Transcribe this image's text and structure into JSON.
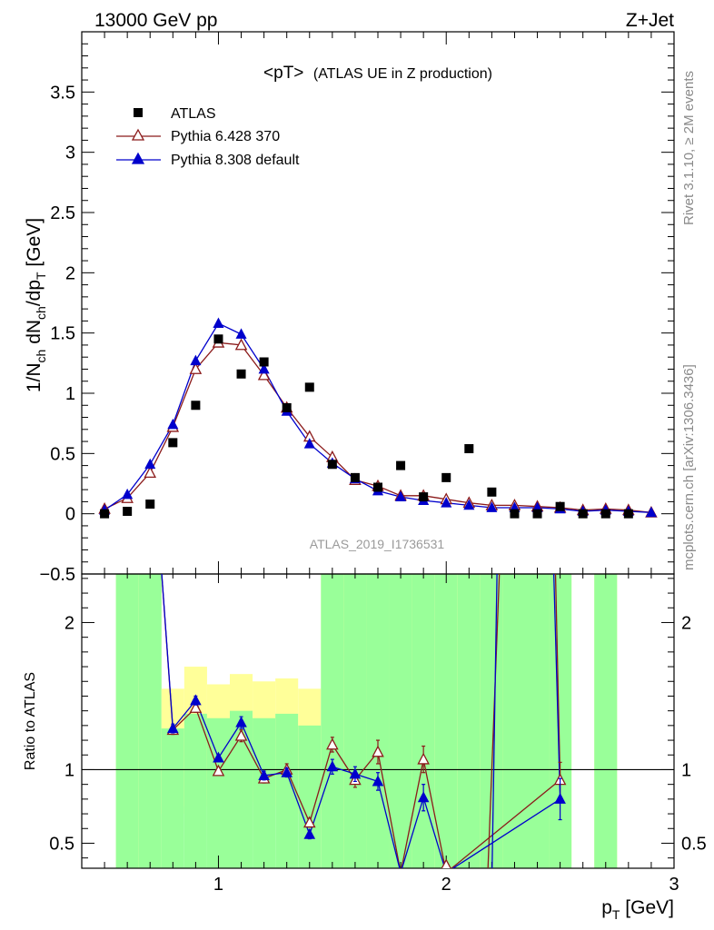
{
  "header": {
    "left": "13000 GeV pp",
    "right": "Z+Jet"
  },
  "side_labels": {
    "top": "Rivet 3.1.10, ≥ 2M events",
    "bottom": "mcplots.cern.ch [arXiv:1306.3436]"
  },
  "plot_title": {
    "main": "<pT>",
    "sub": "(ATLAS UE in Z production)"
  },
  "analysis_id": "ATLAS_2019_I1736531",
  "colors": {
    "data": "#000000",
    "pythia6": "#8b1a1a",
    "pythia8": "#0000cc",
    "band_inner": "#99ff99",
    "band_outer": "#ffff99"
  },
  "chart_data": {
    "type": "scatter",
    "title": "<pT> (ATLAS UE in Z production)",
    "xlabel": "p_T [GeV]",
    "xlim": [
      0.4,
      3.0
    ],
    "x_ticks": [
      1,
      2,
      3
    ],
    "main": {
      "ylabel": "1/N_ch dN_ch/dp_T [GeV]",
      "ylim": [
        -0.5,
        4.0
      ],
      "y_ticks": [
        -0.5,
        0,
        0.5,
        1,
        1.5,
        2,
        2.5,
        3,
        3.5
      ],
      "y_tick_labels": [
        "−0.5",
        "0",
        "0.5",
        "1",
        "1.5",
        "2",
        "2.5",
        "3",
        "3.5"
      ]
    },
    "ratio": {
      "ylabel": "Ratio to ATLAS",
      "ylim": [
        0.33,
        2.33
      ],
      "y_ticks": [
        0.5,
        1,
        2
      ],
      "y_tick_labels": [
        "0.5",
        "1",
        "2"
      ]
    },
    "series": [
      {
        "name": "ATLAS",
        "marker": "square",
        "x": [
          0.5,
          0.6,
          0.7,
          0.8,
          0.9,
          1.0,
          1.1,
          1.2,
          1.3,
          1.4,
          1.5,
          1.6,
          1.7,
          1.8,
          1.9,
          2.0,
          2.1,
          2.2,
          2.3,
          2.4,
          2.5,
          2.6,
          2.7,
          2.8
        ],
        "y": [
          0.0,
          0.02,
          0.08,
          0.59,
          0.9,
          1.45,
          1.16,
          1.26,
          0.88,
          1.05,
          0.41,
          0.3,
          0.22,
          0.4,
          0.14,
          0.3,
          0.54,
          0.18,
          0.0,
          0.0,
          0.06,
          0.0,
          0.0,
          0.0
        ]
      },
      {
        "name": "Pythia 6.428 370",
        "marker": "open-triangle",
        "x": [
          0.5,
          0.6,
          0.7,
          0.8,
          0.9,
          1.0,
          1.1,
          1.2,
          1.3,
          1.4,
          1.5,
          1.6,
          1.7,
          1.8,
          1.9,
          2.0,
          2.1,
          2.2,
          2.3,
          2.4,
          2.5,
          2.6,
          2.7,
          2.8,
          2.9
        ],
        "y": [
          0.04,
          0.13,
          0.34,
          0.72,
          1.2,
          1.42,
          1.4,
          1.15,
          0.88,
          0.64,
          0.47,
          0.28,
          0.23,
          0.15,
          0.15,
          0.12,
          0.09,
          0.07,
          0.07,
          0.06,
          0.05,
          0.03,
          0.04,
          0.03,
          0.01
        ],
        "ratio": [
          null,
          null,
          null,
          1.27,
          1.42,
          0.99,
          1.23,
          0.94,
          1.0,
          0.64,
          1.17,
          0.93,
          1.12,
          0.3,
          1.07,
          0.3,
          null,
          null,
          null,
          null,
          0.93,
          null,
          null,
          null,
          null
        ],
        "ratio_err": [
          0,
          0,
          0,
          0.03,
          0.03,
          0.02,
          0.04,
          0.03,
          0.04,
          0.03,
          0.05,
          0.05,
          0.08,
          0,
          0.09,
          0,
          0,
          0,
          0,
          0,
          0.12,
          0,
          0,
          0,
          0
        ]
      },
      {
        "name": "Pythia 8.308 default",
        "marker": "filled-triangle",
        "x": [
          0.5,
          0.6,
          0.7,
          0.8,
          0.9,
          1.0,
          1.1,
          1.2,
          1.3,
          1.4,
          1.5,
          1.6,
          1.7,
          1.8,
          1.9,
          2.0,
          2.1,
          2.2,
          2.3,
          2.4,
          2.5,
          2.6,
          2.7,
          2.8,
          2.9
        ],
        "y": [
          0.03,
          0.16,
          0.41,
          0.74,
          1.27,
          1.58,
          1.49,
          1.2,
          0.85,
          0.58,
          0.42,
          0.29,
          0.19,
          0.14,
          0.11,
          0.09,
          0.07,
          0.05,
          0.05,
          0.05,
          0.04,
          0.02,
          0.03,
          0.02,
          0.01
        ],
        "ratio": [
          null,
          null,
          null,
          1.28,
          1.47,
          1.08,
          1.32,
          0.96,
          0.98,
          0.56,
          1.02,
          0.97,
          0.92,
          0.3,
          0.81,
          0.3,
          null,
          null,
          null,
          null,
          0.8,
          null,
          null,
          null,
          null
        ],
        "ratio_err": [
          0,
          0,
          0,
          0.03,
          0.03,
          0.02,
          0.04,
          0.03,
          0.03,
          0.03,
          0.05,
          0.05,
          0.06,
          0,
          0.09,
          0,
          0,
          0,
          0,
          0,
          0.14,
          0,
          0,
          0,
          0
        ]
      }
    ],
    "uncertainty_bands": {
      "edges": [
        0.45,
        0.55,
        0.65,
        0.75,
        0.85,
        0.95,
        1.05,
        1.15,
        1.25,
        1.35,
        1.45,
        1.55,
        1.65,
        1.75,
        1.85,
        1.95,
        2.05,
        2.15,
        2.25,
        2.35,
        2.45,
        2.55,
        2.65,
        2.75,
        2.85
      ],
      "inner_lo": [
        null,
        0.0,
        0.0,
        0.0,
        0.0,
        0.0,
        0.0,
        0.0,
        0.0,
        0.0,
        0.0,
        0.0,
        0.0,
        0.0,
        0.0,
        0.0,
        0.0,
        0.0,
        0.0,
        0.0,
        0.0,
        null,
        0.0,
        null
      ],
      "inner_hi": [
        null,
        2.5,
        2.5,
        1.28,
        1.38,
        1.35,
        1.4,
        1.35,
        1.38,
        1.3,
        2.5,
        2.5,
        2.5,
        2.5,
        2.5,
        2.5,
        2.5,
        2.5,
        2.5,
        2.5,
        2.5,
        null,
        2.5,
        null
      ],
      "outer_lo": [
        null,
        0.0,
        0.0,
        0.7,
        0.75,
        0.8,
        0.75,
        0.78,
        0.75,
        0.7,
        0.0,
        0.0,
        0.0,
        0.0,
        0.0,
        0.0,
        0.0,
        0.0,
        0.0,
        0.0,
        0.0,
        null,
        0.0,
        null
      ],
      "outer_hi": [
        null,
        2.5,
        2.5,
        1.55,
        1.7,
        1.58,
        1.65,
        1.6,
        1.62,
        1.55,
        2.5,
        2.5,
        2.5,
        2.5,
        2.5,
        2.5,
        2.5,
        2.5,
        2.5,
        2.5,
        2.5,
        null,
        2.5,
        null
      ]
    }
  }
}
